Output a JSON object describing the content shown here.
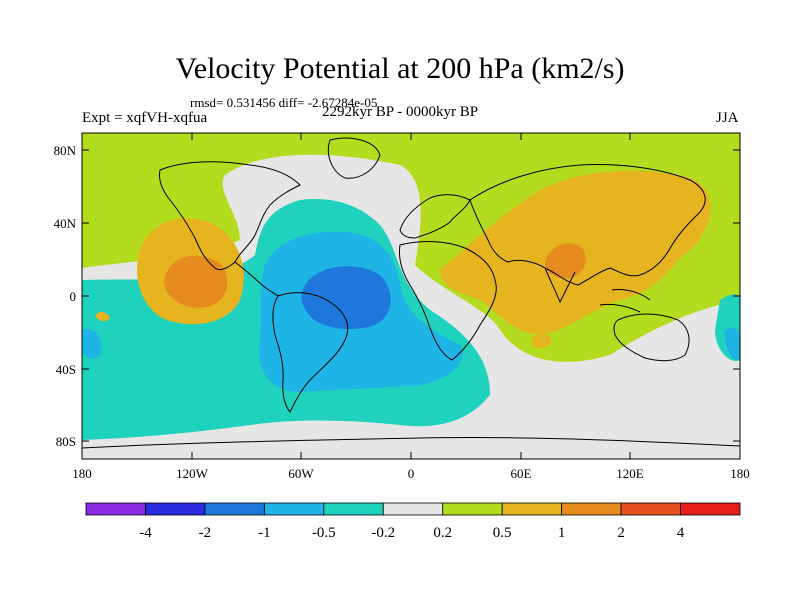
{
  "title": "Velocity Potential at 200 hPa (km2/s)",
  "stats": "rmsd= 0.531456 diff= -2.67284e-05",
  "left_label": "Expt = xqfVH-xqfua",
  "center_label": "2292kyr BP - 0000kyr BP",
  "right_label": "JJA",
  "lat_ticks": [
    "80N",
    "40N",
    "0",
    "40S",
    "80S"
  ],
  "lon_ticks": [
    "180",
    "120W",
    "60W",
    "0",
    "60E",
    "120E",
    "180"
  ],
  "colorbar": {
    "colors": [
      "#8a2be2",
      "#2a2ae0",
      "#1e78dc",
      "#1eb4e6",
      "#1ed2be",
      "#e6e6e6",
      "#b4dc1e",
      "#e6b41e",
      "#e68c1e",
      "#e6501e",
      "#e61e1e"
    ],
    "labels": [
      "-4",
      "-2",
      "-1",
      "-0.5",
      "-0.2",
      "0.2",
      "0.5",
      "1",
      "2",
      "4"
    ]
  }
}
